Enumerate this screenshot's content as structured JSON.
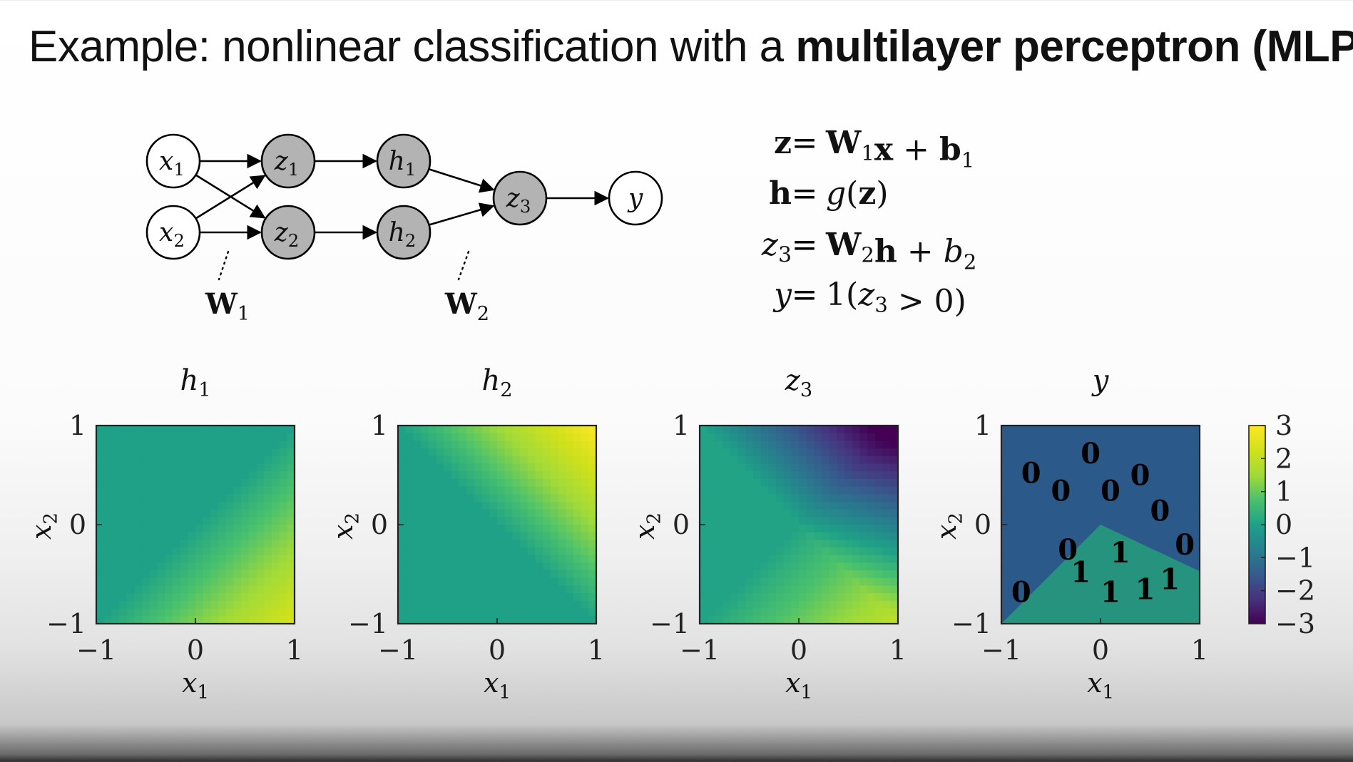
{
  "slide": {
    "title_plain": "Example: nonlinear classification with a ",
    "title_bold": "multilayer perceptron (MLP)"
  },
  "network": {
    "nodes": {
      "x1": {
        "base": "x",
        "sub": "1"
      },
      "x2": {
        "base": "x",
        "sub": "2"
      },
      "z1": {
        "base": "z",
        "sub": "1"
      },
      "z2": {
        "base": "z",
        "sub": "2"
      },
      "h1": {
        "base": "h",
        "sub": "1"
      },
      "h2": {
        "base": "h",
        "sub": "2"
      },
      "z3": {
        "base": "z",
        "sub": "3"
      },
      "y": {
        "base": "y",
        "sub": ""
      }
    },
    "weight_labels": {
      "W1": {
        "base": "W",
        "sub": "1"
      },
      "W2": {
        "base": "W",
        "sub": "2"
      }
    },
    "colors": {
      "input_fill": "#ffffff",
      "hidden_fill": "#b3b3b3",
      "stroke": "#000000"
    }
  },
  "equations": [
    {
      "lhs": "z",
      "lhs_sub": "",
      "rhs": [
        {
          "t": "W",
          "b": true,
          "s": "1"
        },
        {
          "t": "x",
          "b": true
        },
        {
          "t": " + "
        },
        {
          "t": "b",
          "b": true,
          "s": "1"
        }
      ]
    },
    {
      "lhs": "h",
      "lhs_sub": "",
      "rhs": [
        {
          "t": "g",
          "i": true
        },
        {
          "t": "("
        },
        {
          "t": "z",
          "b": true
        },
        {
          "t": ")"
        }
      ]
    },
    {
      "lhs": "z",
      "lhs_sub": "3",
      "rhs": [
        {
          "t": "W",
          "b": true,
          "s": "2"
        },
        {
          "t": "h",
          "b": true
        },
        {
          "t": " + "
        },
        {
          "t": "b",
          "i": true,
          "s": "2"
        }
      ]
    },
    {
      "lhs": "y",
      "lhs_sub": "",
      "rhs": [
        {
          "t": "1("
        },
        {
          "t": "z",
          "i": true,
          "s": "3"
        },
        {
          "t": " > 0)"
        }
      ]
    }
  ],
  "plots": {
    "titles": [
      {
        "base": "h",
        "sub": "1"
      },
      {
        "base": "h",
        "sub": "2"
      },
      {
        "base": "z",
        "sub": "3"
      },
      {
        "base": "y",
        "sub": ""
      }
    ],
    "x_ticks": [
      "−1",
      "0",
      "1"
    ],
    "y_ticks": [
      "1",
      "0",
      "−1"
    ],
    "xlabel": {
      "base": "x",
      "sub": "1"
    },
    "ylabel": {
      "base": "x",
      "sub": "2"
    },
    "colorbar_ticks": [
      "3",
      "2",
      "1",
      "0",
      "−1",
      "−2",
      "−3"
    ]
  },
  "chart_data": [
    {
      "type": "heatmap",
      "title": "h1",
      "xlabel": "x1",
      "ylabel": "x2",
      "xlim": [
        -1,
        1
      ],
      "ylim": [
        -1,
        1
      ],
      "colormap": "viridis",
      "clim": [
        -3,
        3
      ],
      "field": "approximately max(0, 1.2*(x1 - x2)), about 0 in upper-left half rising to about 2.4 at (1, -1)"
    },
    {
      "type": "heatmap",
      "title": "h2",
      "xlabel": "x1",
      "ylabel": "x2",
      "xlim": [
        -1,
        1
      ],
      "ylim": [
        -1,
        1
      ],
      "colormap": "viridis",
      "clim": [
        -3,
        3
      ],
      "field": "approximately max(0, 1.5*(x1 + x2)), about 0 in lower-left half rising to about 3 at (1, 1)"
    },
    {
      "type": "heatmap",
      "title": "z3",
      "xlabel": "x1",
      "ylabel": "x2",
      "xlim": [
        -1,
        1
      ],
      "ylim": [
        -1,
        1
      ],
      "colormap": "viridis",
      "clim": [
        -3,
        3
      ],
      "field": "z3 = 0.8*h1 - 1.2*h2 + 0.05, minimum about -3.5 at (1, 1), maximum about 1.2 near (0.5, -1)"
    },
    {
      "type": "scatter",
      "title": "y",
      "xlabel": "x1",
      "ylabel": "x2",
      "xlim": [
        -1,
        1
      ],
      "ylim": [
        -1,
        1
      ],
      "background": {
        "class_1_region": [
          [
            -1,
            -1
          ],
          [
            0,
            0
          ],
          [
            1,
            -0.47
          ],
          [
            1,
            -1
          ]
        ],
        "class_0_color": "#2b5a8a",
        "class_1_color": "#26937f"
      },
      "points": [
        {
          "x": -0.7,
          "y": 0.52,
          "label": "0"
        },
        {
          "x": -0.4,
          "y": 0.34,
          "label": "0"
        },
        {
          "x": -0.1,
          "y": 0.72,
          "label": "0"
        },
        {
          "x": 0.1,
          "y": 0.34,
          "label": "0"
        },
        {
          "x": 0.4,
          "y": 0.5,
          "label": "0"
        },
        {
          "x": 0.6,
          "y": 0.14,
          "label": "0"
        },
        {
          "x": 0.85,
          "y": -0.2,
          "label": "0"
        },
        {
          "x": -0.33,
          "y": -0.25,
          "label": "0"
        },
        {
          "x": -0.8,
          "y": -0.68,
          "label": "0"
        },
        {
          "x": 0.2,
          "y": -0.28,
          "label": "1"
        },
        {
          "x": -0.2,
          "y": -0.48,
          "label": "1"
        },
        {
          "x": 0.1,
          "y": -0.68,
          "label": "1"
        },
        {
          "x": 0.45,
          "y": -0.65,
          "label": "1"
        },
        {
          "x": 0.7,
          "y": -0.55,
          "label": "1"
        }
      ]
    }
  ]
}
